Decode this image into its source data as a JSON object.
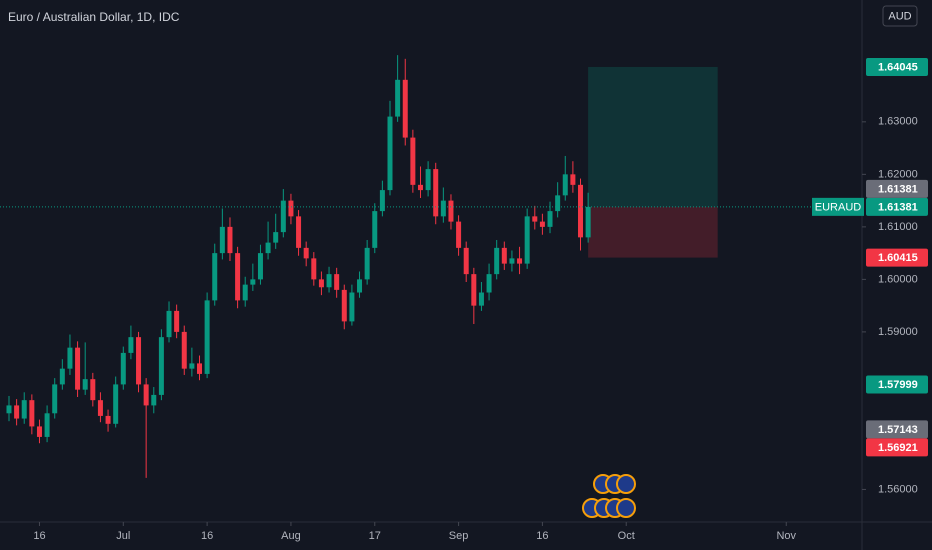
{
  "chart_data": {
    "type": "candlestick",
    "title": "Euro / Australian Dollar, 1D, IDC",
    "currency": "AUD",
    "symbol": "EURAUD",
    "up_color": "#089981",
    "down_color": "#f23645",
    "open": [
      1.5745,
      1.576,
      1.5735,
      1.577,
      1.572,
      1.57,
      1.5745,
      1.58,
      1.583,
      1.587,
      1.579,
      1.581,
      1.577,
      1.574,
      1.5725,
      1.58,
      1.586,
      1.589,
      1.58,
      1.576,
      1.578,
      1.589,
      1.594,
      1.59,
      1.583,
      1.584,
      1.582,
      1.596,
      1.605,
      1.61,
      1.605,
      1.596,
      1.599,
      1.6,
      1.605,
      1.607,
      1.609,
      1.615,
      1.612,
      1.606,
      1.604,
      1.6,
      1.5985,
      1.601,
      1.598,
      1.592,
      1.5975,
      1.6,
      1.606,
      1.613,
      1.617,
      1.631,
      1.638,
      1.627,
      1.618,
      1.617,
      1.621,
      1.612,
      1.615,
      1.611,
      1.606,
      1.601,
      1.595,
      1.5975,
      1.601,
      1.606,
      1.603,
      1.604,
      1.603,
      1.612,
      1.611,
      1.61,
      1.613,
      1.616,
      1.62,
      1.618,
      1.608
    ],
    "high": [
      1.5778,
      1.5772,
      1.5785,
      1.5781,
      1.5733,
      1.576,
      1.5812,
      1.5848,
      1.5895,
      1.5882,
      1.588,
      1.5822,
      1.5785,
      1.5752,
      1.5815,
      1.5872,
      1.5912,
      1.59,
      1.5812,
      1.5795,
      1.5905,
      1.5958,
      1.5952,
      1.5912,
      1.587,
      1.5855,
      1.5975,
      1.6068,
      1.6135,
      1.6118,
      1.6062,
      1.6005,
      1.603,
      1.6066,
      1.611,
      1.6125,
      1.6172,
      1.6163,
      1.6132,
      1.6072,
      1.6052,
      1.6015,
      1.6024,
      1.6022,
      1.599,
      1.599,
      1.6015,
      1.6075,
      1.6145,
      1.6188,
      1.634,
      1.6427,
      1.642,
      1.6285,
      1.6215,
      1.6225,
      1.6222,
      1.6175,
      1.6162,
      1.6122,
      1.6072,
      1.6022,
      1.5995,
      1.603,
      1.6075,
      1.6072,
      1.6055,
      1.6062,
      1.6135,
      1.614,
      1.6125,
      1.6148,
      1.6185,
      1.6235,
      1.6225,
      1.6192,
      1.6165
    ],
    "low": [
      1.573,
      1.5722,
      1.5725,
      1.5705,
      1.5688,
      1.569,
      1.5735,
      1.579,
      1.5818,
      1.5776,
      1.578,
      1.5758,
      1.5728,
      1.571,
      1.5718,
      1.579,
      1.5848,
      1.5785,
      1.5622,
      1.5745,
      1.577,
      1.588,
      1.5888,
      1.5818,
      1.5815,
      1.5808,
      1.5812,
      1.595,
      1.6038,
      1.6035,
      1.5945,
      1.5948,
      1.5978,
      1.599,
      1.6038,
      1.6058,
      1.608,
      1.6105,
      1.6045,
      1.6025,
      1.5988,
      1.597,
      1.5975,
      1.5965,
      1.5905,
      1.5912,
      1.5965,
      1.599,
      1.605,
      1.612,
      1.616,
      1.63,
      1.6255,
      1.6165,
      1.6155,
      1.6158,
      1.6105,
      1.6108,
      1.6095,
      1.6045,
      1.5995,
      1.5915,
      1.594,
      1.596,
      1.6,
      1.6018,
      1.6015,
      1.601,
      1.602,
      1.6095,
      1.6085,
      1.6088,
      1.6118,
      1.615,
      1.6165,
      1.6055,
      1.607
    ],
    "close": [
      1.576,
      1.5735,
      1.577,
      1.572,
      1.57,
      1.5745,
      1.58,
      1.583,
      1.587,
      1.579,
      1.581,
      1.577,
      1.574,
      1.5725,
      1.58,
      1.586,
      1.589,
      1.58,
      1.576,
      1.578,
      1.589,
      1.594,
      1.59,
      1.583,
      1.584,
      1.582,
      1.596,
      1.605,
      1.61,
      1.605,
      1.596,
      1.599,
      1.6,
      1.605,
      1.607,
      1.609,
      1.615,
      1.612,
      1.606,
      1.604,
      1.6,
      1.5985,
      1.601,
      1.598,
      1.592,
      1.5975,
      1.6,
      1.606,
      1.613,
      1.617,
      1.631,
      1.638,
      1.627,
      1.618,
      1.617,
      1.621,
      1.612,
      1.615,
      1.611,
      1.606,
      1.601,
      1.595,
      1.5975,
      1.601,
      1.606,
      1.603,
      1.604,
      1.603,
      1.612,
      1.611,
      1.61,
      1.613,
      1.616,
      1.62,
      1.618,
      1.608,
      1.6138
    ],
    "xlim": [
      -1.18,
      111.94
    ],
    "xticks": [
      {
        "value": 4,
        "label": "16"
      },
      {
        "value": 15,
        "label": "Jul"
      },
      {
        "value": 26,
        "label": "16"
      },
      {
        "value": 37,
        "label": "Aug"
      },
      {
        "value": 48,
        "label": "17"
      },
      {
        "value": 59,
        "label": "Sep"
      },
      {
        "value": 70,
        "label": "16"
      },
      {
        "value": 81,
        "label": "Oct"
      },
      {
        "value": 102,
        "label": "Nov"
      }
    ],
    "ylim": [
      1.5538,
      1.6532
    ],
    "yticks": [
      {
        "value": 1.56,
        "label": "1.56000"
      },
      {
        "value": 1.59,
        "label": "1.59000"
      },
      {
        "value": 1.6,
        "label": "1.60000"
      },
      {
        "value": 1.61,
        "label": "1.61000"
      },
      {
        "value": 1.62,
        "label": "1.62000"
      },
      {
        "value": 1.63,
        "label": "1.63000"
      }
    ],
    "position": {
      "entry": 1.61381,
      "target": 1.64045,
      "stop": 1.60415,
      "start_index": 76,
      "end_index": 93
    },
    "price_labels": [
      {
        "value": 1.61381,
        "label": "1.61381",
        "color": "#089981",
        "symbol": true
      },
      {
        "value": 1.64045,
        "label": "1.64045",
        "color": "#089981"
      },
      {
        "value": 1.61381,
        "label": "1.61381",
        "color": "#6a6d78"
      },
      {
        "value": 1.60415,
        "label": "1.60415",
        "color": "#f23645"
      },
      {
        "value": 1.57999,
        "label": "1.57999",
        "color": "#089981"
      },
      {
        "value": 1.57143,
        "label": "1.57143",
        "color": "#6a6d78"
      },
      {
        "value": 1.56921,
        "label": "1.56921",
        "color": "#f23645"
      }
    ]
  }
}
